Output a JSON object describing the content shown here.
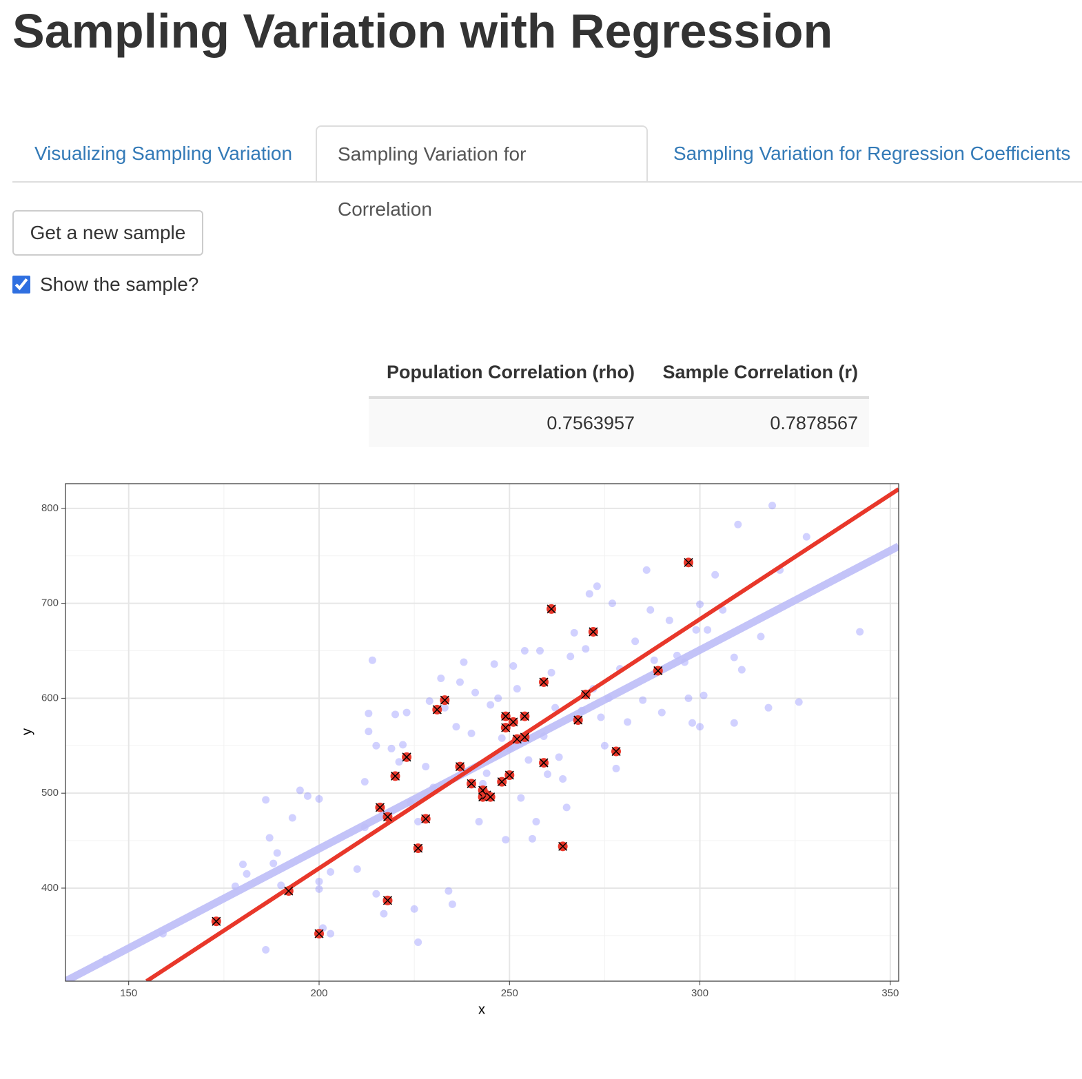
{
  "header": {
    "title": "Sampling Variation with Regression"
  },
  "tabs": [
    "Visualizing Sampling Variation",
    "Sampling Variation for Correlation",
    "Sampling Variation for Regression Coefficients"
  ],
  "active_tab": 1,
  "button": "Get a new sample",
  "checkbox": {
    "label": "Show the sample?",
    "checked": true
  },
  "table": {
    "columns": [
      "Population Correlation (rho)",
      "Sample Correlation (r)"
    ],
    "rows": [
      [
        "0.7563957",
        "0.7878567"
      ]
    ]
  },
  "chart_data": {
    "type": "scatter",
    "x_label": "x",
    "y_label": "y",
    "xlim": [
      133.4,
      352.2
    ],
    "ylim": [
      302,
      826
    ],
    "xticks": [
      150,
      200,
      250,
      300,
      350
    ],
    "yticks": [
      400,
      500,
      600,
      700,
      800
    ],
    "xminor": [
      175,
      225,
      275,
      325
    ],
    "yminor": [
      350,
      450,
      550,
      650,
      750
    ],
    "grid": true,
    "series": [
      {
        "color": "#7b7bff",
        "x": [
          144,
          159,
          186,
          186,
          187,
          189,
          188,
          180,
          181,
          178,
          190,
          193,
          195,
          197,
          200,
          200,
          201,
          203,
          200,
          203,
          212,
          214,
          213,
          213,
          215,
          212,
          210,
          215,
          217,
          219,
          222,
          223,
          220,
          221,
          224,
          226,
          225,
          226,
          228,
          229,
          230,
          232,
          233,
          234,
          235,
          236,
          237,
          238,
          240,
          241,
          242,
          243,
          244,
          245,
          246,
          247,
          248,
          249,
          250,
          251,
          252,
          253,
          254,
          255,
          256,
          257,
          258,
          259,
          260,
          261,
          262,
          263,
          264,
          265,
          266,
          267,
          269,
          270,
          271,
          272,
          273,
          274,
          275,
          276,
          277,
          278,
          279,
          281,
          283,
          285,
          286,
          287,
          288,
          290,
          292,
          294,
          296,
          297,
          298,
          299,
          300,
          300,
          301,
          302,
          304,
          306,
          309,
          310,
          311,
          309,
          316,
          318,
          319,
          321,
          326,
          328,
          342
        ],
        "y": [
          325,
          352,
          335,
          493,
          453,
          437,
          426,
          425,
          415,
          402,
          403,
          474,
          503,
          497,
          407,
          399,
          358,
          352,
          494,
          417,
          512,
          640,
          584,
          565,
          550,
          464,
          420,
          394,
          373,
          547,
          551,
          585,
          583,
          533,
          490,
          470,
          378,
          343,
          528,
          597,
          506,
          621,
          590,
          397,
          383,
          570,
          617,
          638,
          563,
          606,
          470,
          510,
          521,
          593,
          636,
          600,
          558,
          451,
          547,
          634,
          610,
          495,
          650,
          535,
          452,
          470,
          650,
          560,
          520,
          627,
          590,
          538,
          515,
          485,
          644,
          669,
          587,
          652,
          710,
          610,
          718,
          580,
          550,
          600,
          700,
          526,
          631,
          575,
          660,
          598,
          735,
          693,
          640,
          585,
          682,
          645,
          638,
          600,
          574,
          672,
          699,
          570,
          603,
          672,
          730,
          693,
          643,
          783,
          630,
          574,
          665,
          590,
          803,
          735,
          596,
          770,
          670
        ]
      },
      {
        "color": "#e8372a",
        "x": [
          173,
          192,
          200,
          216,
          218,
          218,
          220,
          223,
          226,
          228,
          231,
          233,
          237,
          240,
          243,
          243,
          244,
          245,
          248,
          249,
          249,
          250,
          251,
          252,
          254,
          254,
          259,
          259,
          261,
          264,
          268,
          270,
          272,
          278,
          289,
          297
        ],
        "y": [
          365,
          397,
          352,
          485,
          475,
          387,
          518,
          538,
          442,
          473,
          588,
          598,
          528,
          510,
          503,
          496,
          498,
          496,
          512,
          581,
          569,
          519,
          575,
          557,
          581,
          559,
          617,
          532,
          694,
          444,
          577,
          604,
          670,
          544,
          629,
          743
        ]
      }
    ],
    "lines": [
      {
        "color": "#bcbcf7",
        "x": [
          133.4,
          352.2
        ],
        "y": [
          302,
          760.1
        ]
      },
      {
        "color": "#e8372a",
        "x": [
          154.7,
          352.2
        ],
        "y": [
          302,
          820.3
        ]
      }
    ]
  }
}
